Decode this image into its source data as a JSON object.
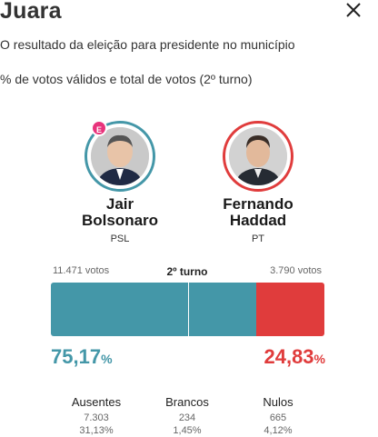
{
  "header": {
    "title": "Juara",
    "subtitle1": "O resultado da eleição para presidente no município",
    "subtitle2": "% de votos válidos e total de votos (2º turno)"
  },
  "candidates": [
    {
      "name_line1": "Jair",
      "name_line2": "Bolsonaro",
      "party": "PSL",
      "votes": "11.471 votos",
      "percent": "75,17",
      "percent_value": 75.17,
      "badge": "E",
      "color": "#4497a8"
    },
    {
      "name_line1": "Fernando",
      "name_line2": "Haddad",
      "party": "PT",
      "votes": "3.790 votos",
      "percent": "24,83",
      "percent_value": 24.83,
      "color": "#e03c3c"
    }
  ],
  "round_label": "2º turno",
  "percent_sign": "%",
  "stats": [
    {
      "label": "Ausentes",
      "count": "7.303",
      "percent": "31,13%"
    },
    {
      "label": "Brancos",
      "count": "234",
      "percent": "1,45%"
    },
    {
      "label": "Nulos",
      "count": "665",
      "percent": "4,12%"
    }
  ],
  "colors": {
    "teal": "#4497a8",
    "red": "#e03c3c",
    "badge": "#e8347c"
  }
}
